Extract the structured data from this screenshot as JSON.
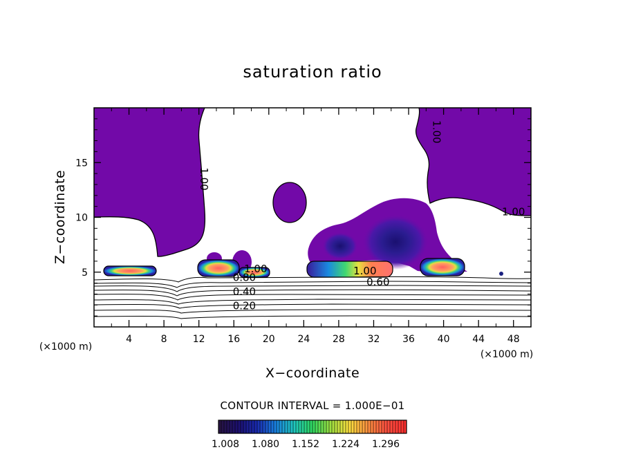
{
  "chart_data": {
    "type": "contour",
    "title": "saturation ratio",
    "xlabel": "X−coordinate",
    "ylabel": "Z−coordinate",
    "x_unit": "(×1000 m)",
    "y_unit": "(×1000 m)",
    "xlim": [
      0,
      50
    ],
    "ylim": [
      0,
      20
    ],
    "x_ticks": [
      4,
      8,
      12,
      16,
      20,
      24,
      28,
      32,
      36,
      40,
      44,
      48
    ],
    "y_ticks": [
      5,
      10,
      15
    ],
    "contour_interval_text": "CONTOUR INTERVAL = 1.000E−01",
    "contour_labels": [
      {
        "x": 12.2,
        "z": 13.5,
        "text": "1.00",
        "rotated": true
      },
      {
        "x": 38.8,
        "z": 17.8,
        "text": "1.00",
        "rotated": true
      },
      {
        "x": 48.0,
        "z": 10.2,
        "text": "1.00",
        "rotated": false
      },
      {
        "x": 18.5,
        "z": 5.0,
        "text": "1.00",
        "rotated": false
      },
      {
        "x": 31.0,
        "z": 4.8,
        "text": "1.00",
        "rotated": false
      },
      {
        "x": 17.2,
        "z": 4.2,
        "text": "0.80",
        "rotated": false
      },
      {
        "x": 32.5,
        "z": 3.8,
        "text": "0.60",
        "rotated": false
      },
      {
        "x": 17.2,
        "z": 2.9,
        "text": "0.40",
        "rotated": false
      },
      {
        "x": 17.2,
        "z": 1.6,
        "text": "0.20",
        "rotated": false
      }
    ],
    "colorbar": {
      "labels": [
        "1.008",
        "1.080",
        "1.152",
        "1.224",
        "1.296"
      ],
      "colors": [
        "#281444",
        "#1c1070",
        "#1a2ab0",
        "#1a80e0",
        "#20c8c0",
        "#30d860",
        "#a0e040",
        "#ffe040",
        "#ff9040",
        "#ff5040",
        "#ff3030"
      ]
    },
    "fill_color": "#7209a8"
  }
}
